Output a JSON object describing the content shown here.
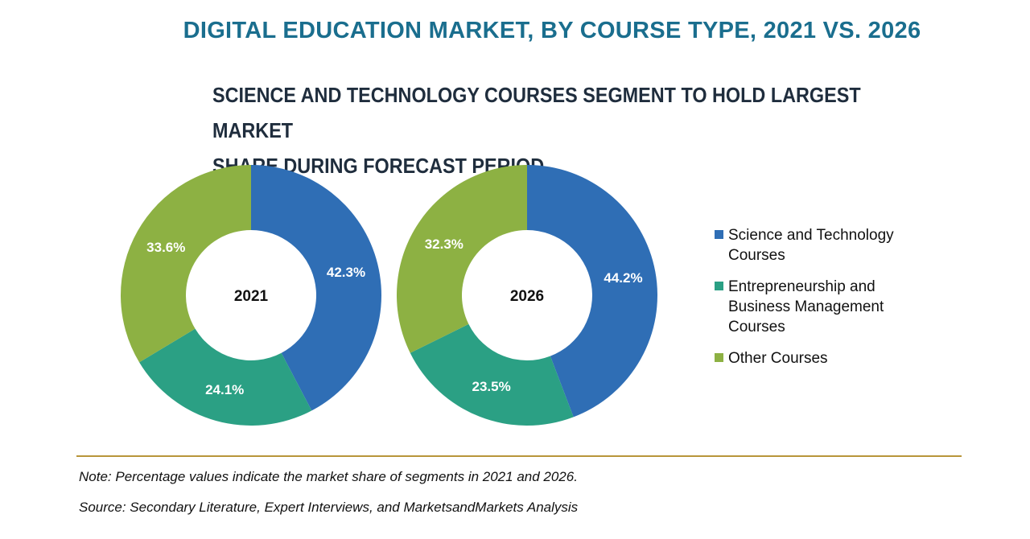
{
  "header": {
    "title": "DIGITAL EDUCATION MARKET, BY COURSE TYPE, 2021 VS. 2026",
    "subtitle_line1": "SCIENCE AND TECHNOLOGY COURSES SEGMENT TO HOLD LARGEST MARKET",
    "subtitle_line2": "SHARE DURING FORECAST PERIOD"
  },
  "legend": {
    "items": [
      {
        "label_line1": "Science and Technology",
        "label_line2": "Courses",
        "color": "#2f6eb5"
      },
      {
        "label_line1": "Entrepreneurship and",
        "label_line2": "Business Management",
        "label_line3": "Courses",
        "color": "#2ba084"
      },
      {
        "label_line1": "Other Courses",
        "color": "#8db143"
      }
    ]
  },
  "chart_data": [
    {
      "type": "pie",
      "center_label": "2021",
      "categories": [
        "Science and Technology Courses",
        "Entrepreneurship and Business Management Courses",
        "Other Courses"
      ],
      "values": [
        42.3,
        24.1,
        33.6
      ],
      "value_labels": [
        "42.3%",
        "24.1%",
        "33.6%"
      ],
      "colors": [
        "#2f6eb5",
        "#2ba084",
        "#8db143"
      ]
    },
    {
      "type": "pie",
      "center_label": "2026",
      "categories": [
        "Science and Technology Courses",
        "Entrepreneurship and Business Management Courses",
        "Other Courses"
      ],
      "values": [
        44.2,
        23.5,
        32.3
      ],
      "value_labels": [
        "44.2%",
        "23.5%",
        "32.3%"
      ],
      "colors": [
        "#2f6eb5",
        "#2ba084",
        "#8db143"
      ]
    }
  ],
  "footer": {
    "note": "Note: Percentage values indicate the market share of segments in 2021 and 2026.",
    "source": "Source: Secondary Literature, Expert Interviews, and MarketsandMarkets Analysis"
  }
}
